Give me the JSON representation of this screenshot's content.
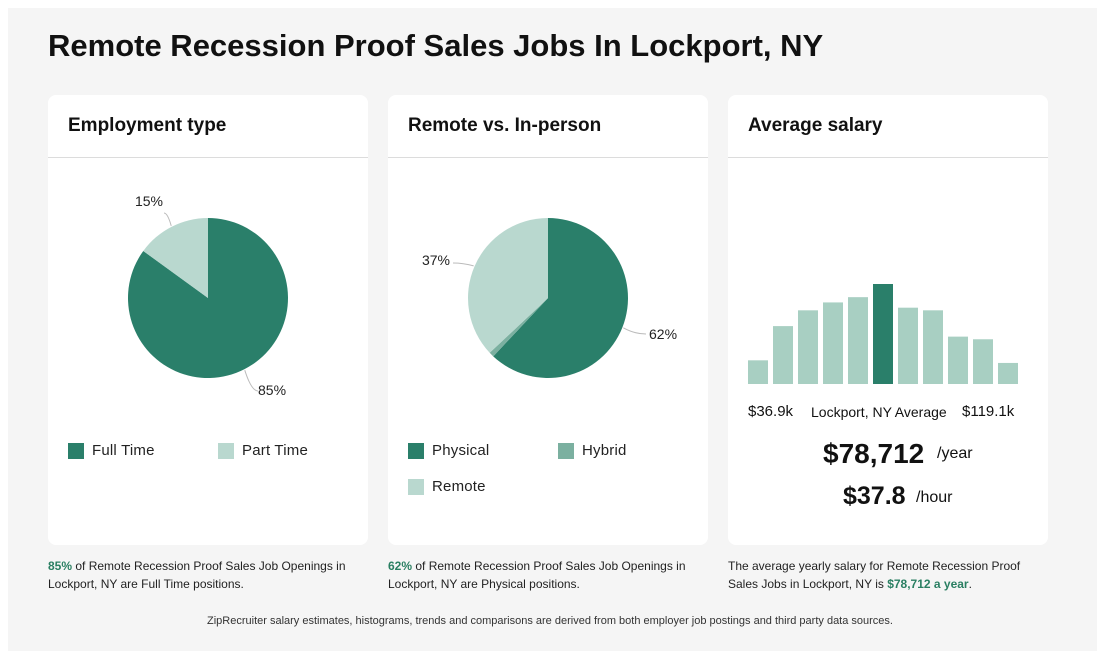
{
  "page": {
    "title": "Remote Recession Proof Sales Jobs In Lockport, NY",
    "footer": "ZipRecruiter salary estimates, histograms, trends and comparisons are derived from both employer job postings and third party data sources."
  },
  "colors": {
    "dark": "#2a7f6a",
    "mid": "#7bb0a0",
    "light": "#b9d8cf",
    "accent_text": "#2a7f62"
  },
  "cards": {
    "employment": {
      "header": "Employment type",
      "legend": [
        "Full Time",
        "Part Time"
      ],
      "caption_pct": "85%",
      "caption_rest": " of Remote Recession Proof Sales Job Openings in Lockport, NY are Full Time positions."
    },
    "remote": {
      "header": "Remote vs. In-person",
      "legend": [
        "Physical",
        "Hybrid",
        "Remote"
      ],
      "caption_pct": "62%",
      "caption_rest": " of Remote Recession Proof Sales Job Openings in Lockport, NY are Physical positions."
    },
    "salary": {
      "header": "Average salary",
      "min_label": "$36.9k",
      "mid_label": "Lockport, NY Average",
      "max_label": "$119.1k",
      "yearly": "$78,712",
      "yearly_unit": "/year",
      "hourly": "$37.8",
      "hourly_unit": "/hour",
      "caption_pre": "The average yearly salary for Remote Recession Proof Sales Jobs in Lockport, NY is ",
      "caption_hl": "$78,712 a year",
      "caption_post": "."
    }
  },
  "chart_data": [
    {
      "type": "pie",
      "title": "Employment type",
      "labels": [
        "Full Time",
        "Part Time"
      ],
      "values": [
        85,
        15
      ],
      "value_labels": [
        "85%",
        "15%"
      ]
    },
    {
      "type": "pie",
      "title": "Remote vs. In-person",
      "labels": [
        "Physical",
        "Hybrid",
        "Remote"
      ],
      "values": [
        62,
        1,
        37
      ],
      "value_labels": [
        "62%",
        "",
        "37%"
      ]
    },
    {
      "type": "bar",
      "title": "Average salary",
      "values": [
        9,
        22,
        28,
        31,
        33,
        38,
        29,
        28,
        18,
        17,
        8
      ],
      "highlight_index": 5
    }
  ]
}
